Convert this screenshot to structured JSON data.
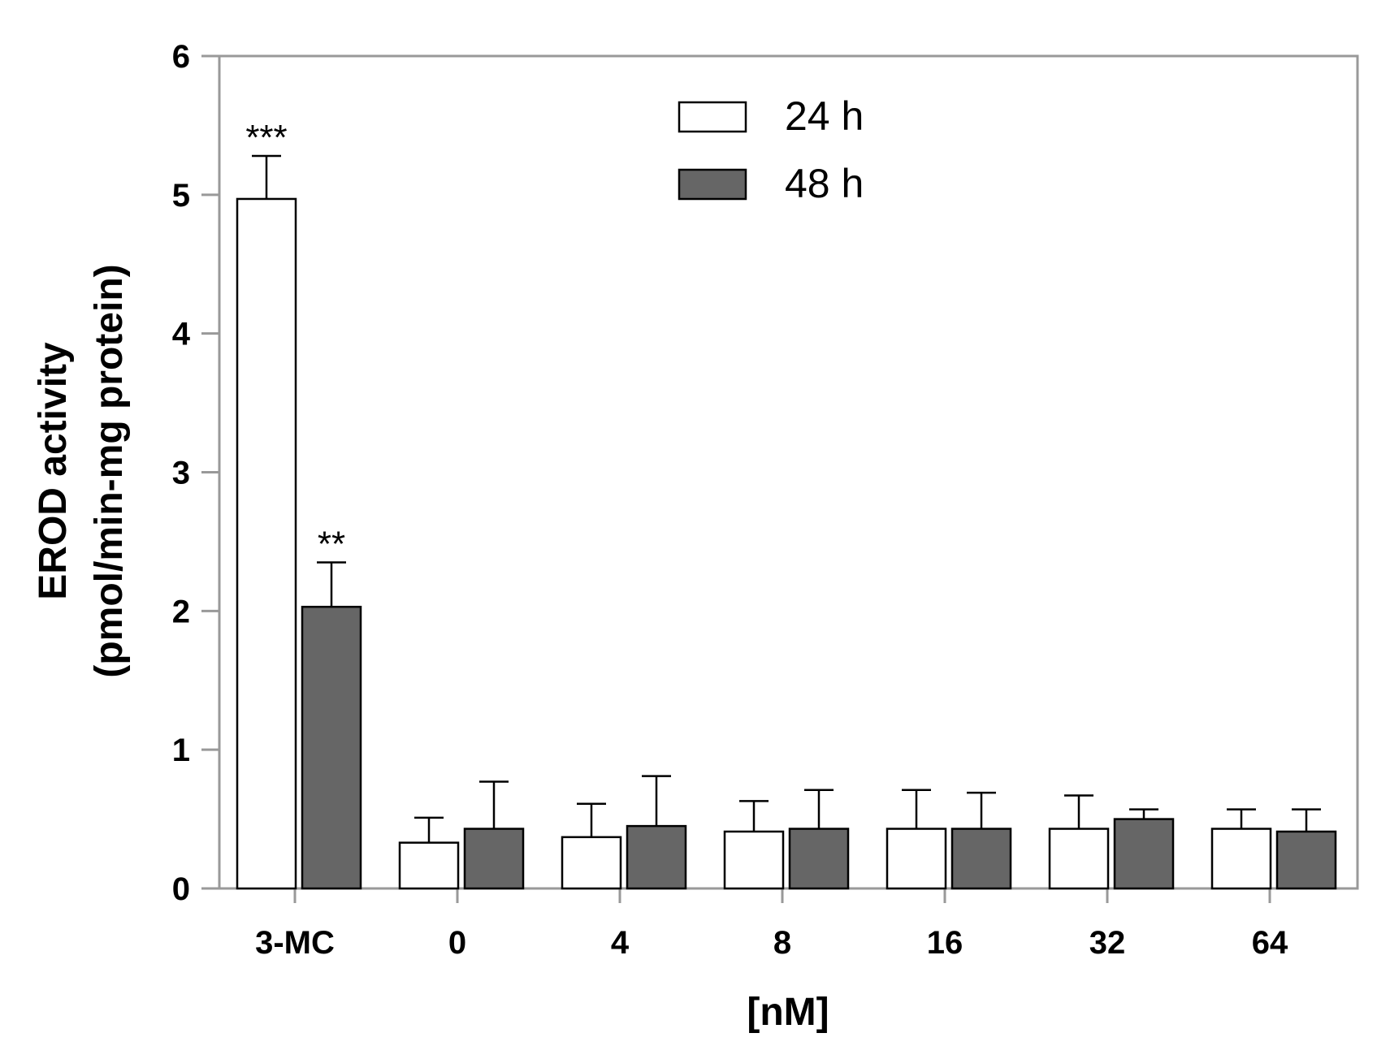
{
  "chart_data": {
    "type": "bar",
    "title": "",
    "xlabel": "[nM]",
    "ylabel_line1": "EROD activity",
    "ylabel_line2": "(pmol/min-mg protein)",
    "ylim": [
      0,
      6
    ],
    "yticks": [
      0,
      1,
      2,
      3,
      4,
      5,
      6
    ],
    "categories": [
      "3-MC",
      "0",
      "4",
      "8",
      "16",
      "32",
      "64"
    ],
    "legend_position": "top-center",
    "grid": false,
    "series": [
      {
        "name": "24 h",
        "color": "#ffffff",
        "values": [
          4.97,
          0.33,
          0.37,
          0.41,
          0.43,
          0.43,
          0.43
        ],
        "errors": [
          0.31,
          0.18,
          0.24,
          0.22,
          0.28,
          0.24,
          0.14
        ],
        "significance": [
          "***",
          "",
          "",
          "",
          "",
          "",
          ""
        ]
      },
      {
        "name": "48 h",
        "color": "#666666",
        "values": [
          2.03,
          0.43,
          0.45,
          0.43,
          0.43,
          0.5,
          0.41
        ],
        "errors": [
          0.32,
          0.34,
          0.36,
          0.28,
          0.26,
          0.07,
          0.16
        ],
        "significance": [
          "**",
          "",
          "",
          "",
          "",
          "",
          ""
        ]
      }
    ]
  }
}
